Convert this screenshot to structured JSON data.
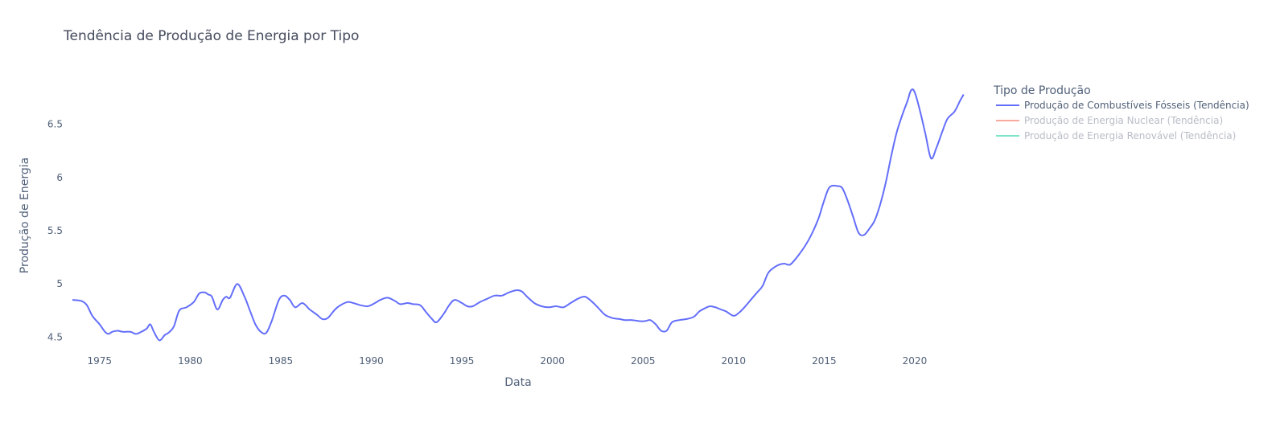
{
  "chart_data": {
    "type": "line",
    "title": "Tendência de Produção de Energia por Tipo",
    "xlabel": "Data",
    "ylabel": "Produção de Energia",
    "xlim": [
      1973.5,
      2022.8
    ],
    "ylim": [
      4.42,
      6.95
    ],
    "x_ticks": [
      "1975",
      "1980",
      "1985",
      "1990",
      "1995",
      "2000",
      "2005",
      "2010",
      "2015",
      "2020"
    ],
    "y_ticks": [
      "4.5",
      "5",
      "5.5",
      "6",
      "6.5"
    ],
    "grid": false,
    "legend": {
      "title": "Tipo de Produção",
      "placement": "right"
    },
    "series": [
      {
        "name": "Produção de Combustíveis Fósseis (Tendência)",
        "color": "#636efa",
        "visible": true,
        "x": [
          1973.5,
          1974.0,
          1974.3,
          1974.6,
          1975.0,
          1975.3,
          1975.5,
          1975.7,
          1976.0,
          1976.3,
          1976.7,
          1977.0,
          1977.3,
          1977.6,
          1977.8,
          1978.0,
          1978.3,
          1978.6,
          1978.8,
          1979.1,
          1979.4,
          1979.8,
          1980.2,
          1980.5,
          1980.8,
          1981.0,
          1981.2,
          1981.5,
          1981.8,
          1982.0,
          1982.2,
          1982.6,
          1983.0,
          1983.3,
          1983.6,
          1983.9,
          1984.2,
          1984.5,
          1984.9,
          1985.2,
          1985.5,
          1985.8,
          1986.2,
          1986.6,
          1987.0,
          1987.3,
          1987.6,
          1988.0,
          1988.3,
          1988.7,
          1989.0,
          1989.4,
          1989.8,
          1990.2,
          1990.5,
          1990.9,
          1991.3,
          1991.6,
          1992.0,
          1992.3,
          1992.7,
          1993.0,
          1993.3,
          1993.6,
          1994.0,
          1994.3,
          1994.6,
          1995.0,
          1995.3,
          1995.6,
          1996.0,
          1996.4,
          1996.8,
          1997.2,
          1997.6,
          1998.0,
          1998.3,
          1998.6,
          1999.0,
          1999.4,
          1999.8,
          2000.2,
          2000.6,
          2001.0,
          2001.4,
          2001.8,
          2002.2,
          2002.5,
          2002.9,
          2003.3,
          2003.7,
          2004.0,
          2004.4,
          2004.8,
          2005.1,
          2005.4,
          2005.7,
          2006.0,
          2006.3,
          2006.6,
          2007.0,
          2007.4,
          2007.8,
          2008.1,
          2008.4,
          2008.7,
          2009.0,
          2009.3,
          2009.6,
          2010.0,
          2010.3,
          2010.6,
          2011.0,
          2011.3,
          2011.6,
          2011.9,
          2012.2,
          2012.5,
          2012.8,
          2013.1,
          2013.4,
          2013.8,
          2014.1,
          2014.4,
          2014.7,
          2014.9,
          2015.2,
          2015.4,
          2015.7,
          2016.0,
          2016.3,
          2016.6,
          2016.9,
          2017.2,
          2017.5,
          2017.8,
          2018.1,
          2018.4,
          2018.7,
          2019.0,
          2019.3,
          2019.6,
          2019.8,
          2020.0,
          2020.3,
          2020.6,
          2020.9,
          2021.2,
          2021.5,
          2021.8,
          2022.2,
          2022.5,
          2022.7
        ],
        "y": [
          4.85,
          4.84,
          4.8,
          4.7,
          4.62,
          4.55,
          4.53,
          4.55,
          4.56,
          4.55,
          4.55,
          4.53,
          4.55,
          4.58,
          4.62,
          4.55,
          4.47,
          4.52,
          4.54,
          4.6,
          4.75,
          4.78,
          4.83,
          4.91,
          4.92,
          4.9,
          4.88,
          4.76,
          4.85,
          4.88,
          4.87,
          5.0,
          4.88,
          4.75,
          4.62,
          4.55,
          4.54,
          4.65,
          4.85,
          4.89,
          4.85,
          4.78,
          4.82,
          4.76,
          4.71,
          4.67,
          4.68,
          4.76,
          4.8,
          4.83,
          4.82,
          4.8,
          4.79,
          4.82,
          4.85,
          4.87,
          4.84,
          4.81,
          4.82,
          4.81,
          4.8,
          4.74,
          4.68,
          4.64,
          4.72,
          4.8,
          4.85,
          4.82,
          4.79,
          4.79,
          4.83,
          4.86,
          4.89,
          4.89,
          4.92,
          4.94,
          4.93,
          4.88,
          4.82,
          4.79,
          4.78,
          4.79,
          4.78,
          4.82,
          4.86,
          4.88,
          4.83,
          4.78,
          4.71,
          4.68,
          4.67,
          4.66,
          4.66,
          4.65,
          4.65,
          4.66,
          4.62,
          4.56,
          4.56,
          4.64,
          4.66,
          4.67,
          4.69,
          4.74,
          4.77,
          4.79,
          4.78,
          4.76,
          4.74,
          4.7,
          4.73,
          4.78,
          4.86,
          4.92,
          4.98,
          5.1,
          5.15,
          5.18,
          5.19,
          5.18,
          5.23,
          5.32,
          5.4,
          5.5,
          5.62,
          5.73,
          5.88,
          5.92,
          5.92,
          5.9,
          5.78,
          5.63,
          5.48,
          5.46,
          5.52,
          5.6,
          5.75,
          5.95,
          6.2,
          6.42,
          6.58,
          6.72,
          6.82,
          6.8,
          6.62,
          6.4,
          6.18,
          6.28,
          6.42,
          6.55,
          6.62,
          6.72,
          6.78
        ]
      },
      {
        "name": "Produção de Energia Nuclear (Tendência)",
        "color": "#ef553b",
        "visible": false
      },
      {
        "name": "Produção de Energia Renovável (Tendência)",
        "color": "#00cc96",
        "visible": false
      }
    ]
  }
}
